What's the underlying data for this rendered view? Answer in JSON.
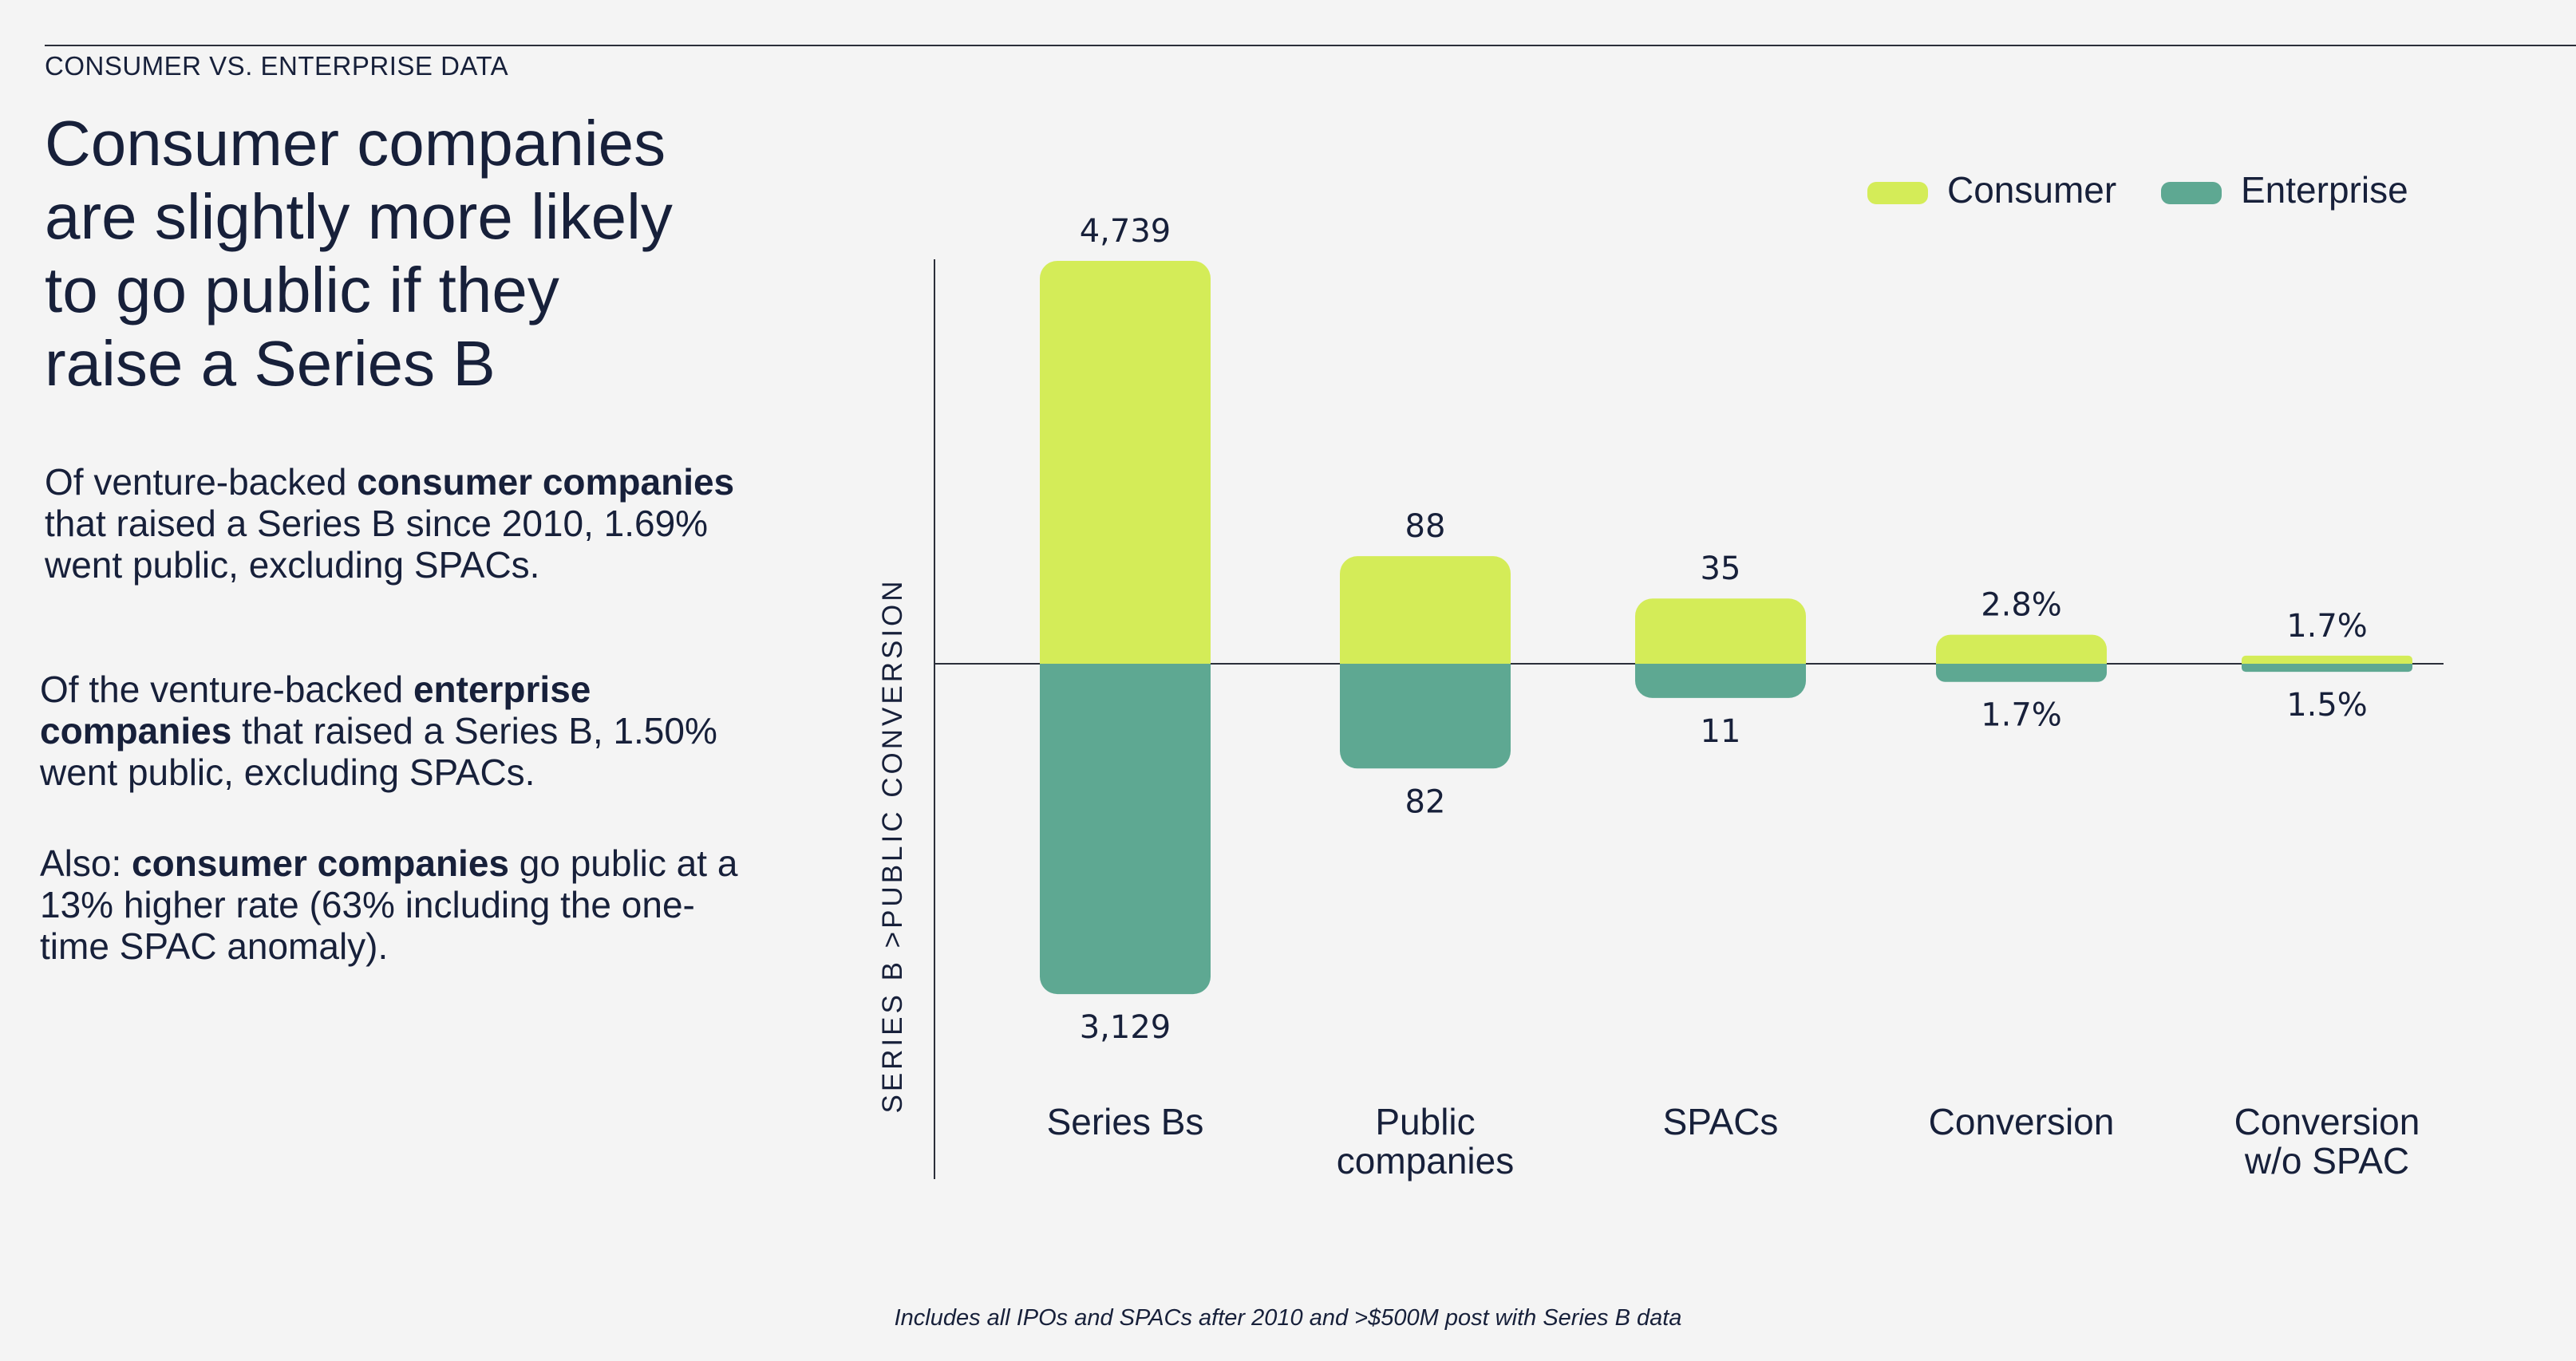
{
  "eyebrow": "CONSUMER VS. ENTERPRISE DATA",
  "headline": {
    "line1": "Consumer companies",
    "line2": "are slightly more likely",
    "line3": "to go public if they",
    "line4": "raise a Series B"
  },
  "paragraphs": {
    "p1": {
      "pre": "Of venture-backed ",
      "bold": "consumer companies",
      "post": " that raised a Series B since 2010, 1.69% went public, excluding SPACs."
    },
    "p2": {
      "pre": "Of the venture-backed ",
      "bold": "enterprise companies",
      "post": " that raised a Series B, 1.50% went public, excluding SPACs."
    },
    "p3": {
      "pre": "Also: ",
      "bold": "consumer companies",
      "post": " go public at a 13% higher rate (63% including the one-time SPAC anomaly)."
    }
  },
  "footnote": "Includes all IPOs and SPACs after 2010 and >$500M post with Series B data",
  "chart_data": {
    "type": "bar",
    "layout": "diverging",
    "title": "",
    "xlabel": "",
    "ylabel": "SERIES B >PUBLIC CONVERSION",
    "legend_position": "top-right",
    "categories": [
      [
        "Series Bs"
      ],
      [
        "Public",
        "companies"
      ],
      [
        "SPACs"
      ],
      [
        "Conversion"
      ],
      [
        "Conversion",
        "w/o SPAC"
      ]
    ],
    "series": [
      {
        "name": "Consumer",
        "direction": "up",
        "color": "#d4ec58",
        "values": [
          4739,
          88,
          35,
          2.8,
          1.7
        ],
        "labels": [
          "4,739",
          "88",
          "35",
          "2.8%",
          "1.7%"
        ]
      },
      {
        "name": "Enterprise",
        "direction": "down",
        "color": "#5ea892",
        "values": [
          3129,
          82,
          11,
          1.7,
          1.5
        ],
        "labels": [
          "3,129",
          "82",
          "11",
          "1.7%",
          "1.5%"
        ]
      }
    ],
    "note": "Bar heights are not on a shared linear scale; visual magnitudes are relative per category group.",
    "display_magnitudes": {
      "consumer": [
        1.0,
        0.267,
        0.162,
        0.072,
        0.02
      ],
      "enterprise": [
        0.82,
        0.26,
        0.085,
        0.045,
        0.02
      ]
    },
    "colors": {
      "axis": "#2b2f3a",
      "text": "#17203a"
    }
  }
}
